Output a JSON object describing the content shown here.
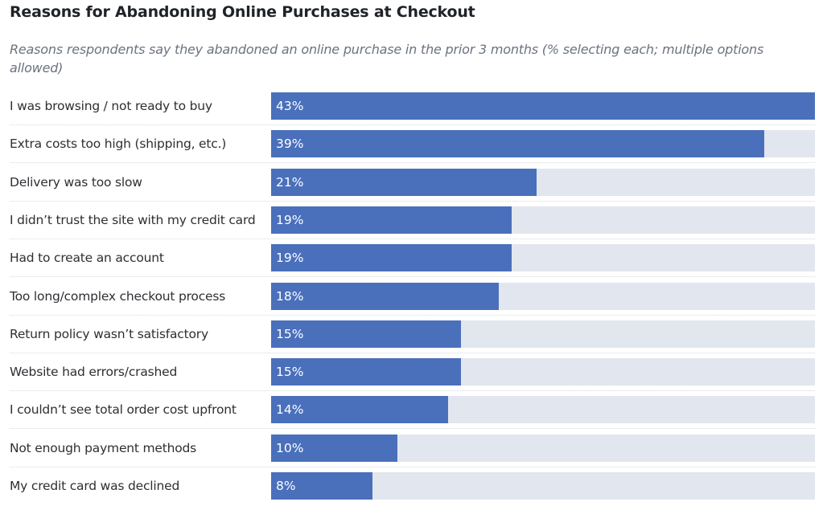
{
  "chart_data": {
    "type": "bar",
    "orientation": "horizontal",
    "title": "Reasons for Abandoning Online Purchases at Checkout",
    "subtitle": "Reasons respondents say they abandoned an online purchase in the prior 3 months (% selecting each; multiple options allowed)",
    "categories": [
      "I was browsing / not ready to buy",
      "Extra costs too high (shipping, etc.)",
      "Delivery was too slow",
      "I didn’t trust the site with my credit card",
      "Had to create an account",
      "Too long/complex checkout process",
      "Return policy wasn’t satisfactory",
      "Website had errors/crashed",
      "I couldn’t see total order cost upfront",
      "Not enough payment methods",
      "My credit card was declined"
    ],
    "values": [
      43,
      39,
      21,
      19,
      19,
      18,
      15,
      15,
      14,
      10,
      8
    ],
    "value_labels": [
      "43%",
      "39%",
      "21%",
      "19%",
      "19%",
      "18%",
      "15%",
      "15%",
      "14%",
      "10%",
      "8%"
    ],
    "xlim": [
      0,
      43
    ],
    "grid": false,
    "colors": {
      "bar": "#4a70bb",
      "track": "#e2e6ee"
    }
  }
}
